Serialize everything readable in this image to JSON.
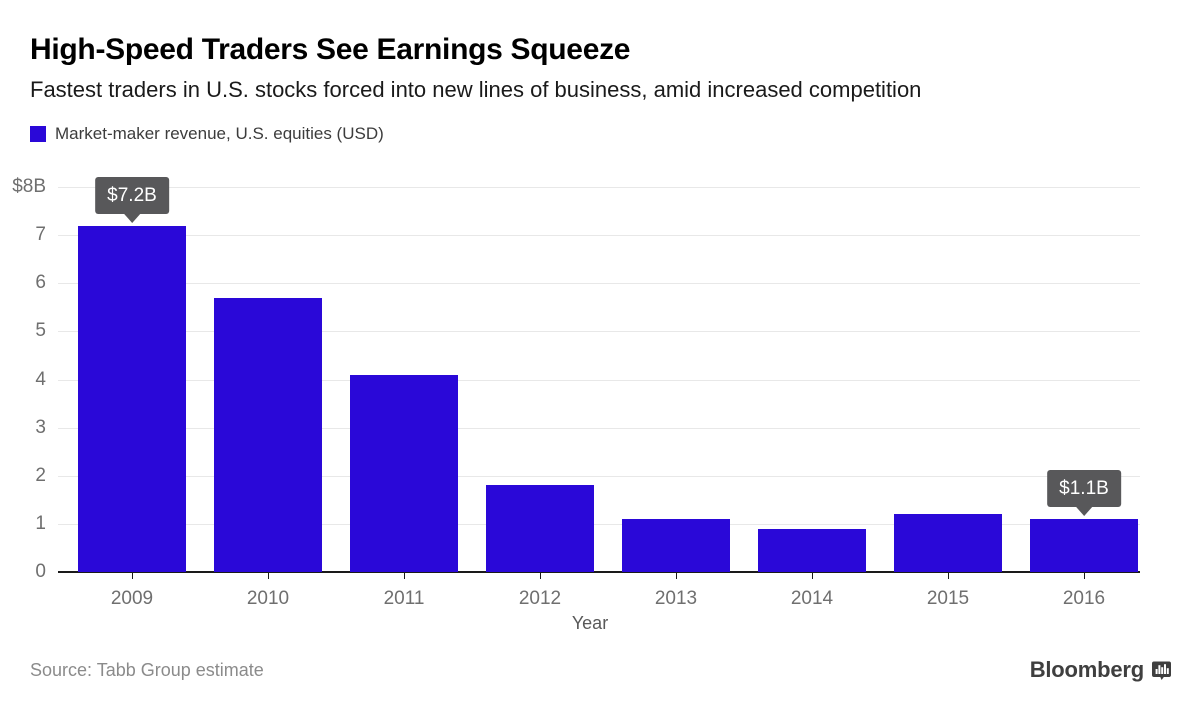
{
  "header": {
    "title": "High-Speed Traders See Earnings Squeeze",
    "subtitle": "Fastest traders in U.S. stocks forced into new lines of business, amid increased competition",
    "legend_label": "Market-maker revenue, U.S. equities (USD)"
  },
  "chart_data": {
    "type": "bar",
    "title": "Market-maker revenue, U.S. equities (USD)",
    "categories": [
      "2009",
      "2010",
      "2011",
      "2012",
      "2013",
      "2014",
      "2015",
      "2016"
    ],
    "values": [
      7.2,
      5.7,
      4.1,
      1.8,
      1.1,
      0.9,
      1.2,
      1.1
    ],
    "xlabel": "Year",
    "ylabel": "",
    "ylim": [
      0,
      8
    ],
    "yticks": [
      0,
      1,
      2,
      3,
      4,
      5,
      6,
      7,
      8
    ],
    "ytick_labels": [
      "0",
      "1",
      "2",
      "3",
      "4",
      "5",
      "6",
      "7",
      "$8B"
    ],
    "grid": true,
    "legend_position": "top-left",
    "bar_color": "#2a08d8",
    "annotations": [
      {
        "category": "2009",
        "label": "$7.2B"
      },
      {
        "category": "2016",
        "label": "$1.1B"
      }
    ]
  },
  "footer": {
    "source": "Source: Tabb Group estimate",
    "brand": "Bloomberg"
  },
  "colors": {
    "bar": "#2a08d8",
    "tooltip_bg": "#58585a",
    "tooltip_text": "#ffffff",
    "gridline": "#e8e8e8",
    "axis": "#1a1a1a",
    "tick_label": "#6f6f6f",
    "title": "#000000",
    "subtitle": "#1a1a1a",
    "legend_text": "#3c3c3c",
    "source_text": "#8b8b8b",
    "brand_text": "#3f3f3f"
  }
}
